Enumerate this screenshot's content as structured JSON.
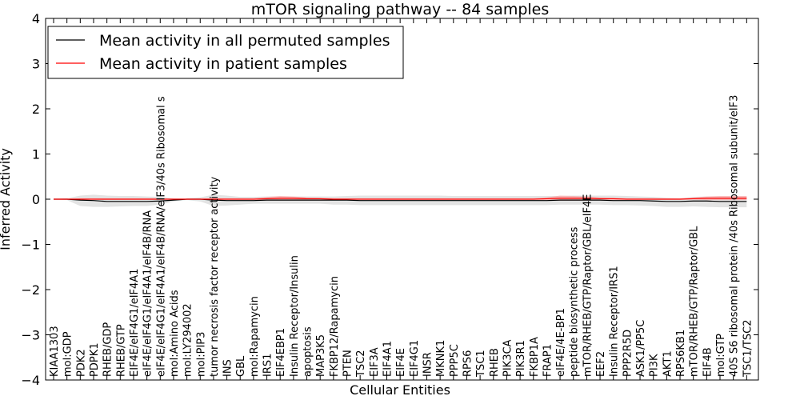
{
  "chart_data": {
    "type": "line",
    "title": "mTOR signaling pathway -- 84 samples",
    "xlabel": "Cellular Entities",
    "ylabel": "Inferred Activity",
    "ylim": [
      -4,
      4
    ],
    "yticks": [
      4,
      3,
      2,
      1,
      0,
      -1,
      -2,
      -3,
      -4
    ],
    "ytick_labels": [
      "4",
      "3",
      "2",
      "1",
      "0",
      "−1",
      "−2",
      "−3",
      "−4"
    ],
    "legend_position": "upper-left",
    "colors": {
      "permuted": "#000000",
      "patient": "#ff0000",
      "permuted_band": "#cccccc",
      "patient_band": "#ff9999"
    },
    "categories": [
      "KIAA1303",
      "mol:GDP",
      "PDK2",
      "PDPK1",
      "RHEB/GDP",
      "RHEB/GTP",
      "EIF4E/eIF4G1/eIF4A1",
      "eIF4E/eIF4G1/eIF4A1/eIF4B/RNA",
      "eIF4E/eIF4G1/eIF4A1/eIF4B/RNA/eIF3/40s Ribosomal s",
      "mol:Amino Acids",
      "mol:LY294002",
      "mol:PIP3",
      "tumor necrosis factor receptor activity",
      "INS",
      "GBL",
      "mol:Rapamycin",
      "IRS1",
      "EIF4EBP1",
      "Insulin Receptor/Insulin",
      "apoptosis",
      "MAP3K5",
      "FKBP12/Rapamycin",
      "PTEN",
      "TSC2",
      "EIF3A",
      "EIF4A1",
      "EIF4E",
      "EIF4G1",
      "INSR",
      "MKNK1",
      "PPP5C",
      "RPS6",
      "TSC1",
      "RHEB",
      "PIK3CA",
      "PIK3R1",
      "FKBP1A",
      "FRAP1",
      "eIF4E/4E-BP1",
      "peptide biosynthetic process",
      "mTOR/RHEB/GTP/Raptor/GBL/eIF4E",
      "EEF2",
      "Insulin Receptor/IRS1",
      "PPP2R5D",
      "ASK1/PP5C",
      "PI3K",
      "AKT1",
      "RPS6KB1",
      "mTOR/RHEB/GTP/Raptor/GBL",
      "EIF4B",
      "mol:GTP",
      "40S S6 ribosomal protein /40s Ribosomal subunit/eIF3",
      "TSC1/TSC2"
    ],
    "series": [
      {
        "name": "Mean activity in all permuted samples",
        "values": [
          0,
          0,
          -0.02,
          -0.03,
          -0.05,
          -0.05,
          -0.05,
          -0.05,
          -0.04,
          -0.02,
          0,
          0,
          -0.02,
          -0.03,
          -0.03,
          -0.03,
          -0.02,
          -0.02,
          -0.02,
          -0.02,
          -0.02,
          -0.02,
          -0.02,
          -0.03,
          -0.03,
          -0.03,
          -0.03,
          -0.03,
          -0.03,
          -0.03,
          -0.03,
          -0.03,
          -0.03,
          -0.03,
          -0.03,
          -0.03,
          -0.03,
          -0.03,
          -0.02,
          -0.02,
          -0.02,
          -0.02,
          -0.03,
          -0.03,
          -0.03,
          -0.04,
          -0.05,
          -0.05,
          -0.04,
          -0.04,
          -0.05,
          -0.05,
          -0.05
        ],
        "band_lower": [
          0,
          -0.02,
          -0.15,
          -0.17,
          -0.17,
          -0.16,
          -0.15,
          -0.15,
          -0.12,
          -0.05,
          -0.02,
          -0.05,
          -0.15,
          -0.14,
          -0.12,
          -0.1,
          -0.1,
          -0.1,
          -0.1,
          -0.1,
          -0.1,
          -0.12,
          -0.12,
          -0.13,
          -0.13,
          -0.13,
          -0.13,
          -0.13,
          -0.13,
          -0.13,
          -0.13,
          -0.13,
          -0.13,
          -0.13,
          -0.13,
          -0.13,
          -0.13,
          -0.13,
          -0.12,
          -0.12,
          -0.12,
          -0.12,
          -0.13,
          -0.13,
          -0.14,
          -0.15,
          -0.17,
          -0.17,
          -0.16,
          -0.17,
          -0.18,
          -0.18,
          -0.18
        ],
        "band_upper": [
          0,
          0.02,
          0.08,
          0.1,
          0.08,
          0.07,
          0.07,
          0.06,
          0.05,
          0.02,
          0.02,
          0.04,
          0.1,
          0.08,
          0.05,
          0.05,
          0.06,
          0.06,
          0.06,
          0.06,
          0.06,
          0.06,
          0.07,
          0.08,
          0.08,
          0.08,
          0.08,
          0.08,
          0.08,
          0.08,
          0.07,
          0.07,
          0.07,
          0.07,
          0.07,
          0.07,
          0.07,
          0.07,
          0.07,
          0.08,
          0.08,
          0.08,
          0.08,
          0.07,
          0.06,
          0.05,
          0.03,
          0.02,
          0.05,
          0.06,
          0.06,
          0.06,
          0.06
        ]
      },
      {
        "name": "Mean activity in patient samples",
        "values": [
          0,
          0,
          0,
          0,
          0,
          0,
          0,
          0,
          0,
          0,
          0,
          0,
          0,
          0,
          0,
          0,
          0.01,
          0.02,
          0.02,
          0.01,
          0.01,
          0,
          0,
          0,
          0,
          0,
          0,
          0,
          0,
          0,
          0,
          0,
          0,
          0,
          0,
          0,
          0,
          0.01,
          0.02,
          0.02,
          0.02,
          0.01,
          0.01,
          0,
          0,
          0,
          0,
          0,
          0.01,
          0.02,
          0.02,
          0.02,
          0.02
        ],
        "band_lower": [
          0,
          0,
          -0.01,
          -0.01,
          -0.01,
          -0.01,
          -0.01,
          -0.01,
          -0.01,
          -0.01,
          0,
          0,
          -0.01,
          -0.01,
          -0.01,
          -0.01,
          -0.02,
          -0.02,
          -0.02,
          -0.02,
          -0.01,
          -0.01,
          -0.01,
          -0.01,
          -0.01,
          -0.01,
          -0.01,
          -0.01,
          -0.01,
          -0.01,
          -0.01,
          -0.01,
          -0.01,
          -0.01,
          -0.01,
          -0.01,
          -0.01,
          -0.02,
          -0.03,
          -0.03,
          -0.03,
          -0.02,
          -0.02,
          -0.01,
          -0.01,
          -0.01,
          -0.01,
          -0.01,
          -0.01,
          -0.02,
          -0.02,
          -0.02,
          -0.02
        ],
        "band_upper": [
          0,
          0.01,
          0.02,
          0.02,
          0.02,
          0.02,
          0.02,
          0.02,
          0.02,
          0.01,
          0.01,
          0.01,
          0.02,
          0.02,
          0.02,
          0.02,
          0.05,
          0.07,
          0.06,
          0.04,
          0.03,
          0.02,
          0.02,
          0.02,
          0.02,
          0.02,
          0.02,
          0.02,
          0.02,
          0.02,
          0.02,
          0.02,
          0.02,
          0.02,
          0.02,
          0.02,
          0.02,
          0.04,
          0.08,
          0.07,
          0.06,
          0.04,
          0.03,
          0.02,
          0.02,
          0.02,
          0.02,
          0.02,
          0.04,
          0.06,
          0.07,
          0.07,
          0.07
        ]
      }
    ]
  }
}
